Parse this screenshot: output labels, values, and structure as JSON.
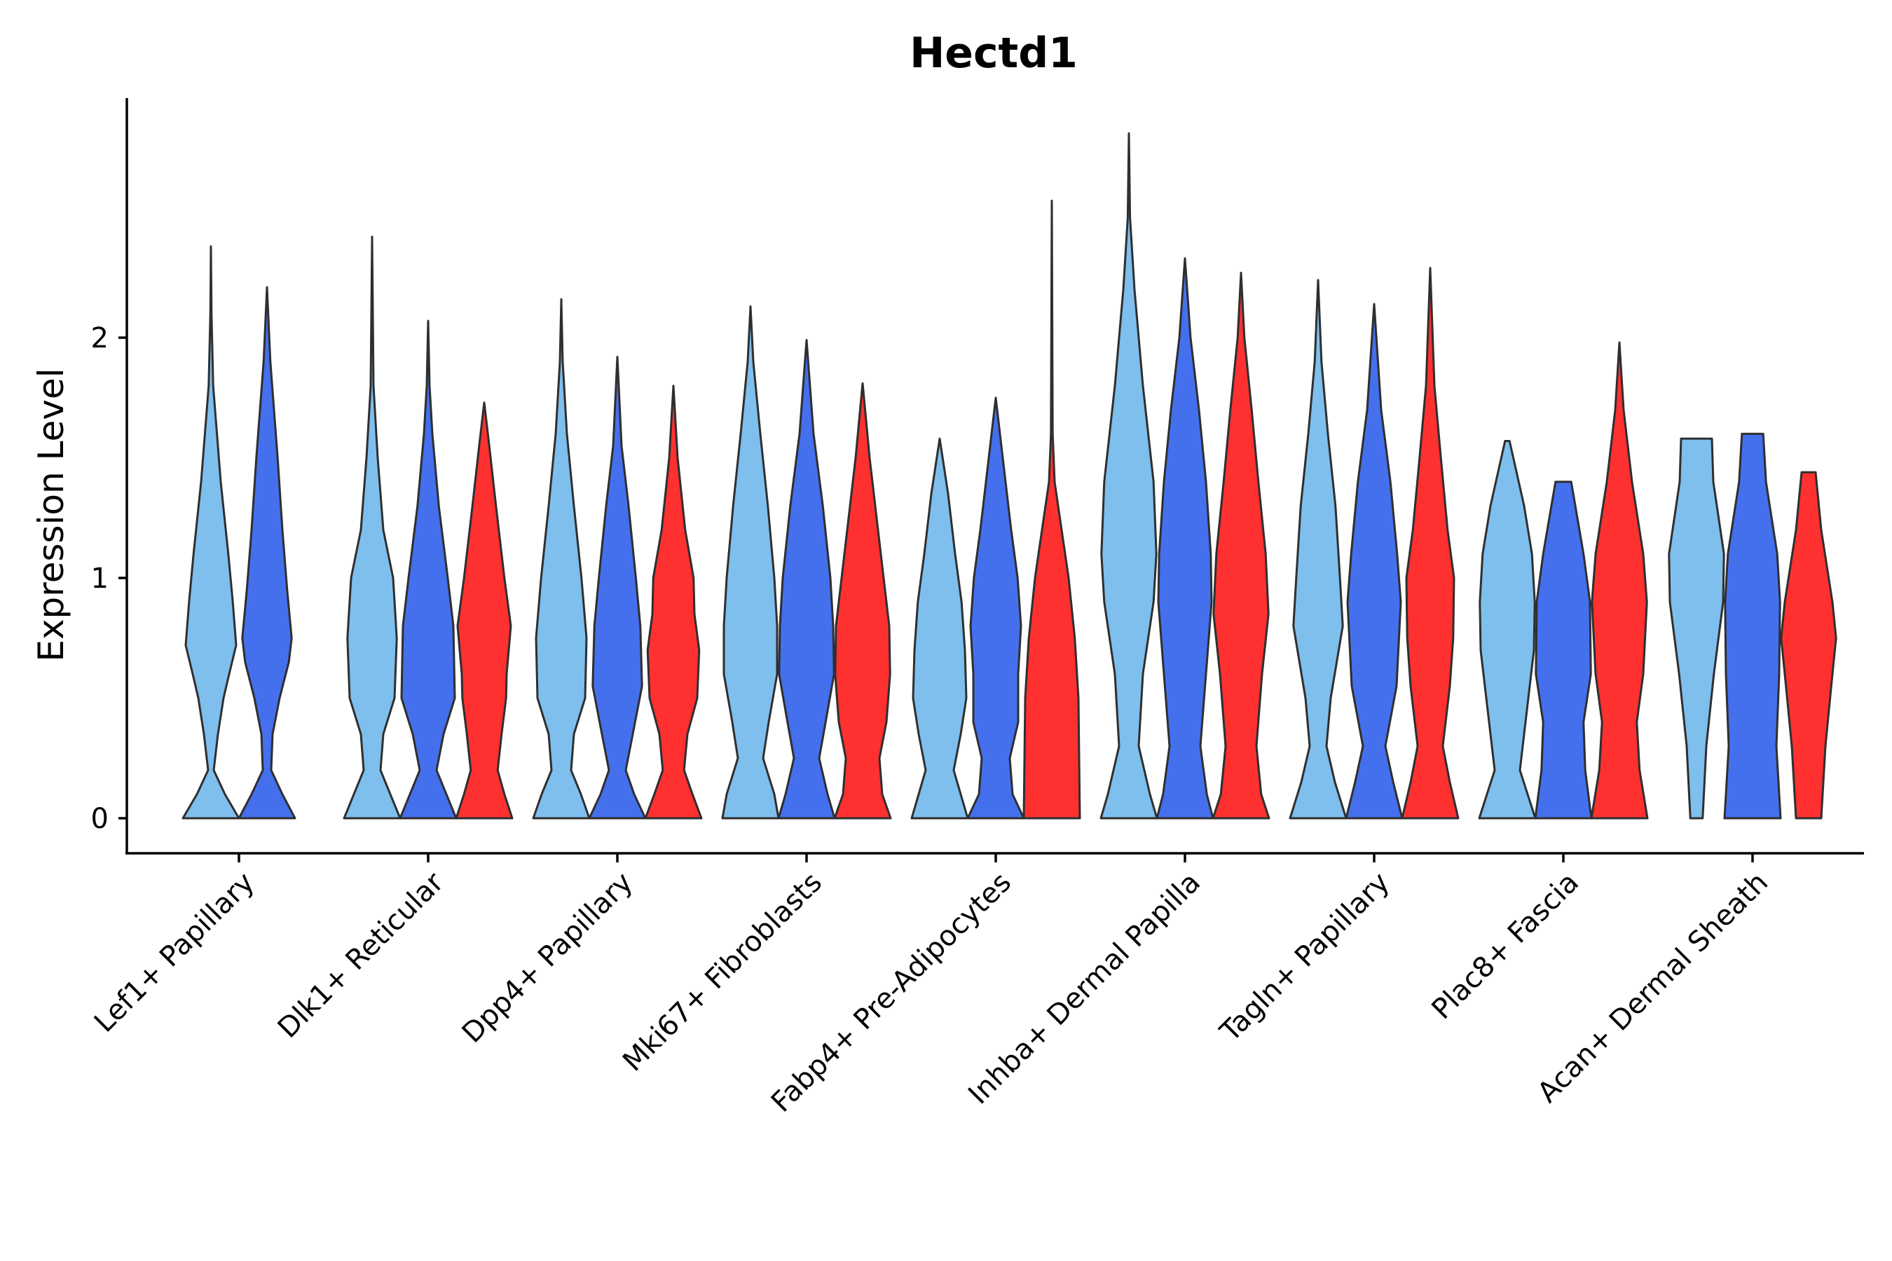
{
  "chart_data": {
    "type": "violin",
    "title": "Hectd1",
    "xlabel": "",
    "ylabel": "Expression Level",
    "ylim": [
      -0.14,
      3.0
    ],
    "yticks": [
      0,
      1,
      2
    ],
    "grid": false,
    "legend": "none",
    "series_colors": [
      "#7EBFEE",
      "#4470EE",
      "#FF3030"
    ],
    "categories": [
      "Lef1+ Papillary",
      "Dlk1+ Reticular",
      "Dpp4+ Papillary",
      "Mki67+ Fibroblasts",
      "Fabp4+ Pre-Adipocytes",
      "Inhba+ Dermal Papilla",
      "Tagln+ Papillary",
      "Plac8+ Fascia",
      "Acan+ Dermal Sheath"
    ],
    "violins": [
      {
        "category": 0,
        "series": 0,
        "max": 2.38,
        "profile": [
          [
            0,
            1
          ],
          [
            0.1,
            0.5
          ],
          [
            0.2,
            0.1
          ],
          [
            0.35,
            0.25
          ],
          [
            0.5,
            0.45
          ],
          [
            0.6,
            0.65
          ],
          [
            0.72,
            0.9
          ],
          [
            0.9,
            0.78
          ],
          [
            1.1,
            0.62
          ],
          [
            1.4,
            0.35
          ],
          [
            1.8,
            0.08
          ],
          [
            2.1,
            0.02
          ],
          [
            2.38,
            0
          ]
        ]
      },
      {
        "category": 0,
        "series": 1,
        "max": 2.21,
        "profile": [
          [
            0,
            1
          ],
          [
            0.1,
            0.55
          ],
          [
            0.2,
            0.15
          ],
          [
            0.35,
            0.2
          ],
          [
            0.5,
            0.45
          ],
          [
            0.65,
            0.78
          ],
          [
            0.75,
            0.88
          ],
          [
            0.95,
            0.72
          ],
          [
            1.2,
            0.55
          ],
          [
            1.5,
            0.38
          ],
          [
            1.9,
            0.12
          ],
          [
            2.21,
            0
          ]
        ]
      },
      {
        "category": 1,
        "series": 0,
        "max": 2.42,
        "profile": [
          [
            0,
            1
          ],
          [
            0.1,
            0.65
          ],
          [
            0.2,
            0.3
          ],
          [
            0.35,
            0.4
          ],
          [
            0.5,
            0.8
          ],
          [
            0.75,
            0.88
          ],
          [
            1.0,
            0.75
          ],
          [
            1.2,
            0.4
          ],
          [
            1.5,
            0.2
          ],
          [
            1.8,
            0.05
          ],
          [
            2.42,
            0
          ]
        ]
      },
      {
        "category": 1,
        "series": 1,
        "max": 2.07,
        "profile": [
          [
            0,
            1
          ],
          [
            0.1,
            0.65
          ],
          [
            0.2,
            0.3
          ],
          [
            0.35,
            0.55
          ],
          [
            0.5,
            0.95
          ],
          [
            0.8,
            0.9
          ],
          [
            1.0,
            0.7
          ],
          [
            1.3,
            0.38
          ],
          [
            1.6,
            0.15
          ],
          [
            1.8,
            0.05
          ],
          [
            2.07,
            0
          ]
        ]
      },
      {
        "category": 1,
        "series": 2,
        "max": 1.73,
        "profile": [
          [
            0,
            1
          ],
          [
            0.1,
            0.72
          ],
          [
            0.2,
            0.48
          ],
          [
            0.35,
            0.62
          ],
          [
            0.5,
            0.78
          ],
          [
            0.6,
            0.8
          ],
          [
            0.8,
            0.95
          ],
          [
            1.0,
            0.72
          ],
          [
            1.3,
            0.42
          ],
          [
            1.55,
            0.18
          ],
          [
            1.73,
            0
          ]
        ]
      },
      {
        "category": 2,
        "series": 0,
        "max": 2.16,
        "profile": [
          [
            0,
            1
          ],
          [
            0.1,
            0.7
          ],
          [
            0.2,
            0.35
          ],
          [
            0.35,
            0.45
          ],
          [
            0.5,
            0.85
          ],
          [
            0.75,
            0.9
          ],
          [
            1.0,
            0.72
          ],
          [
            1.3,
            0.45
          ],
          [
            1.6,
            0.2
          ],
          [
            1.9,
            0.05
          ],
          [
            2.16,
            0
          ]
        ]
      },
      {
        "category": 2,
        "series": 1,
        "max": 1.92,
        "profile": [
          [
            0,
            1
          ],
          [
            0.1,
            0.6
          ],
          [
            0.2,
            0.3
          ],
          [
            0.35,
            0.55
          ],
          [
            0.55,
            0.88
          ],
          [
            0.8,
            0.82
          ],
          [
            1.0,
            0.66
          ],
          [
            1.3,
            0.4
          ],
          [
            1.55,
            0.15
          ],
          [
            1.92,
            0
          ]
        ]
      },
      {
        "category": 2,
        "series": 2,
        "max": 1.8,
        "profile": [
          [
            0,
            1
          ],
          [
            0.1,
            0.68
          ],
          [
            0.2,
            0.38
          ],
          [
            0.35,
            0.5
          ],
          [
            0.5,
            0.85
          ],
          [
            0.7,
            0.92
          ],
          [
            0.85,
            0.75
          ],
          [
            1.0,
            0.72
          ],
          [
            1.2,
            0.42
          ],
          [
            1.5,
            0.15
          ],
          [
            1.8,
            0
          ]
        ]
      },
      {
        "category": 3,
        "series": 0,
        "max": 2.13,
        "profile": [
          [
            0,
            1
          ],
          [
            0.1,
            0.85
          ],
          [
            0.25,
            0.45
          ],
          [
            0.4,
            0.65
          ],
          [
            0.6,
            0.95
          ],
          [
            0.8,
            0.95
          ],
          [
            1.0,
            0.85
          ],
          [
            1.3,
            0.62
          ],
          [
            1.6,
            0.35
          ],
          [
            1.9,
            0.1
          ],
          [
            2.13,
            0
          ]
        ]
      },
      {
        "category": 3,
        "series": 1,
        "max": 1.99,
        "profile": [
          [
            0,
            1
          ],
          [
            0.1,
            0.75
          ],
          [
            0.25,
            0.45
          ],
          [
            0.4,
            0.68
          ],
          [
            0.6,
            0.98
          ],
          [
            0.8,
            0.95
          ],
          [
            1.0,
            0.85
          ],
          [
            1.3,
            0.58
          ],
          [
            1.6,
            0.25
          ],
          [
            1.99,
            0
          ]
        ]
      },
      {
        "category": 3,
        "series": 2,
        "max": 1.81,
        "profile": [
          [
            0,
            1
          ],
          [
            0.1,
            0.7
          ],
          [
            0.25,
            0.6
          ],
          [
            0.4,
            0.85
          ],
          [
            0.6,
            0.98
          ],
          [
            0.8,
            0.95
          ],
          [
            1.0,
            0.75
          ],
          [
            1.2,
            0.55
          ],
          [
            1.5,
            0.25
          ],
          [
            1.81,
            0
          ]
        ]
      },
      {
        "category": 4,
        "series": 0,
        "max": 1.58,
        "profile": [
          [
            0,
            1
          ],
          [
            0.1,
            0.75
          ],
          [
            0.2,
            0.5
          ],
          [
            0.35,
            0.75
          ],
          [
            0.5,
            0.95
          ],
          [
            0.7,
            0.9
          ],
          [
            0.9,
            0.78
          ],
          [
            1.1,
            0.55
          ],
          [
            1.35,
            0.3
          ],
          [
            1.58,
            0
          ]
        ]
      },
      {
        "category": 4,
        "series": 1,
        "max": 1.75,
        "profile": [
          [
            0,
            1
          ],
          [
            0.1,
            0.6
          ],
          [
            0.25,
            0.5
          ],
          [
            0.4,
            0.8
          ],
          [
            0.6,
            0.8
          ],
          [
            0.8,
            0.9
          ],
          [
            1.0,
            0.78
          ],
          [
            1.2,
            0.55
          ],
          [
            1.45,
            0.3
          ],
          [
            1.75,
            0
          ]
        ]
      },
      {
        "category": 4,
        "series": 2,
        "max": 2.57,
        "profile": [
          [
            0,
            1
          ],
          [
            0.2,
            0.98
          ],
          [
            0.5,
            0.95
          ],
          [
            0.75,
            0.82
          ],
          [
            1.0,
            0.6
          ],
          [
            1.2,
            0.35
          ],
          [
            1.4,
            0.1
          ],
          [
            1.6,
            0.03
          ],
          [
            2.57,
            0
          ]
        ]
      },
      {
        "category": 5,
        "series": 0,
        "max": 2.85,
        "profile": [
          [
            0,
            1
          ],
          [
            0.1,
            0.75
          ],
          [
            0.3,
            0.35
          ],
          [
            0.6,
            0.5
          ],
          [
            0.9,
            0.88
          ],
          [
            1.1,
            0.98
          ],
          [
            1.4,
            0.88
          ],
          [
            1.8,
            0.5
          ],
          [
            2.2,
            0.2
          ],
          [
            2.5,
            0.04
          ],
          [
            2.85,
            0
          ]
        ]
      },
      {
        "category": 5,
        "series": 1,
        "max": 2.33,
        "profile": [
          [
            0,
            1
          ],
          [
            0.1,
            0.78
          ],
          [
            0.3,
            0.55
          ],
          [
            0.6,
            0.75
          ],
          [
            0.9,
            0.95
          ],
          [
            1.1,
            0.92
          ],
          [
            1.4,
            0.75
          ],
          [
            1.7,
            0.5
          ],
          [
            2.0,
            0.2
          ],
          [
            2.33,
            0
          ]
        ]
      },
      {
        "category": 5,
        "series": 2,
        "max": 2.27,
        "profile": [
          [
            0,
            1
          ],
          [
            0.1,
            0.72
          ],
          [
            0.3,
            0.55
          ],
          [
            0.6,
            0.75
          ],
          [
            0.85,
            0.98
          ],
          [
            1.1,
            0.88
          ],
          [
            1.4,
            0.62
          ],
          [
            1.7,
            0.38
          ],
          [
            2.0,
            0.12
          ],
          [
            2.27,
            0
          ]
        ]
      },
      {
        "category": 6,
        "series": 0,
        "max": 2.24,
        "profile": [
          [
            0,
            1
          ],
          [
            0.15,
            0.6
          ],
          [
            0.3,
            0.3
          ],
          [
            0.5,
            0.45
          ],
          [
            0.8,
            0.88
          ],
          [
            1.0,
            0.78
          ],
          [
            1.3,
            0.62
          ],
          [
            1.6,
            0.35
          ],
          [
            1.9,
            0.12
          ],
          [
            2.24,
            0
          ]
        ]
      },
      {
        "category": 6,
        "series": 1,
        "max": 2.14,
        "profile": [
          [
            0,
            1
          ],
          [
            0.15,
            0.68
          ],
          [
            0.3,
            0.4
          ],
          [
            0.55,
            0.8
          ],
          [
            0.9,
            0.95
          ],
          [
            1.1,
            0.82
          ],
          [
            1.4,
            0.58
          ],
          [
            1.7,
            0.25
          ],
          [
            2.14,
            0
          ]
        ]
      },
      {
        "category": 6,
        "series": 2,
        "max": 2.29,
        "profile": [
          [
            0,
            1
          ],
          [
            0.15,
            0.7
          ],
          [
            0.3,
            0.45
          ],
          [
            0.55,
            0.7
          ],
          [
            0.75,
            0.82
          ],
          [
            1.0,
            0.85
          ],
          [
            1.2,
            0.62
          ],
          [
            1.5,
            0.38
          ],
          [
            1.8,
            0.15
          ],
          [
            2.29,
            0
          ]
        ]
      },
      {
        "category": 7,
        "series": 0,
        "max": 1.57,
        "profile": [
          [
            0,
            1
          ],
          [
            0.2,
            0.45
          ],
          [
            0.4,
            0.65
          ],
          [
            0.7,
            0.95
          ],
          [
            0.9,
            0.98
          ],
          [
            1.1,
            0.88
          ],
          [
            1.3,
            0.6
          ],
          [
            1.57,
            0.08
          ]
        ]
      },
      {
        "category": 7,
        "series": 1,
        "max": 1.4,
        "profile": [
          [
            0,
            1
          ],
          [
            0.2,
            0.78
          ],
          [
            0.4,
            0.72
          ],
          [
            0.6,
            0.98
          ],
          [
            0.9,
            0.95
          ],
          [
            1.1,
            0.72
          ],
          [
            1.4,
            0.28
          ]
        ]
      },
      {
        "category": 7,
        "series": 2,
        "max": 1.98,
        "profile": [
          [
            0,
            1
          ],
          [
            0.2,
            0.72
          ],
          [
            0.4,
            0.62
          ],
          [
            0.6,
            0.85
          ],
          [
            0.9,
            0.98
          ],
          [
            1.1,
            0.85
          ],
          [
            1.4,
            0.45
          ],
          [
            1.7,
            0.15
          ],
          [
            1.98,
            0
          ]
        ]
      },
      {
        "category": 8,
        "series": 0,
        "max": 1.58,
        "profile": [
          [
            0,
            0.22
          ],
          [
            0.3,
            0.35
          ],
          [
            0.6,
            0.62
          ],
          [
            0.9,
            0.95
          ],
          [
            1.1,
            0.98
          ],
          [
            1.4,
            0.6
          ],
          [
            1.58,
            0.55
          ]
        ]
      },
      {
        "category": 8,
        "series": 1,
        "max": 1.6,
        "profile": [
          [
            0,
            1
          ],
          [
            0.3,
            0.85
          ],
          [
            0.6,
            0.95
          ],
          [
            0.9,
            0.98
          ],
          [
            1.1,
            0.88
          ],
          [
            1.4,
            0.48
          ],
          [
            1.6,
            0.38
          ]
        ]
      },
      {
        "category": 8,
        "series": 2,
        "max": 1.44,
        "profile": [
          [
            0,
            0.45
          ],
          [
            0.3,
            0.6
          ],
          [
            0.6,
            0.85
          ],
          [
            0.75,
            0.98
          ],
          [
            0.9,
            0.85
          ],
          [
            1.2,
            0.45
          ],
          [
            1.44,
            0.25
          ]
        ]
      }
    ]
  }
}
